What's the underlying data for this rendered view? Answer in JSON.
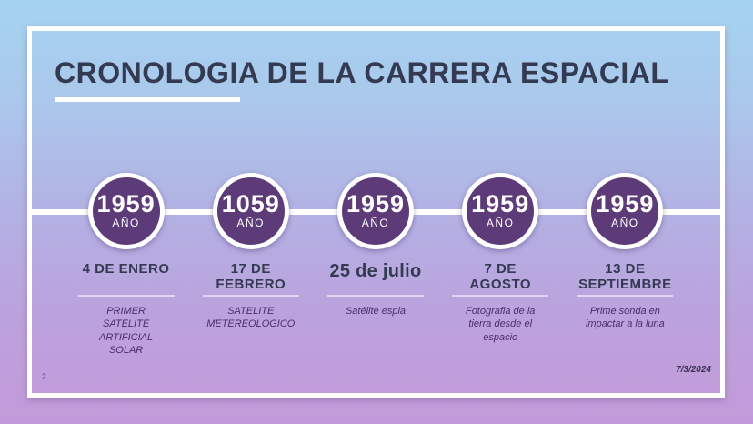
{
  "slide": {
    "title": "CRONOLOGIA DE LA CARRERA ESPACIAL",
    "page_number": "2",
    "footer_date": "7/3/2024"
  },
  "timeline": {
    "items": [
      {
        "year": "1959",
        "year_label": "AÑO",
        "date": "4 DE ENERO",
        "description": "PRIMER\nSATELITE\nARTIFICIAL\nSOLAR"
      },
      {
        "year": "1059",
        "year_label": "AÑO",
        "date": "17 DE\nFEBRERO",
        "description": "SATELITE\nMETEREOLOGICO"
      },
      {
        "year": "1959",
        "year_label": "AÑO",
        "date": "25 de julio",
        "description": "Satélite espia"
      },
      {
        "year": "1959",
        "year_label": "AÑO",
        "date": "7 DE\nAGOSTO",
        "description": "Fotografia de la\ntierra desde el\nespacio"
      },
      {
        "year": "1959",
        "year_label": "AÑO",
        "date": "13 DE\nSEPTIEMBRE",
        "description": "Prime sonda en\nimpactar a la luna"
      }
    ]
  },
  "colors": {
    "background_top": "#a5d3f0",
    "background_bottom": "#c39ad9",
    "circle_fill": "#5d3a78",
    "title_text": "#333a52",
    "description_text": "#4a2c6e",
    "frame": "#ffffff"
  }
}
